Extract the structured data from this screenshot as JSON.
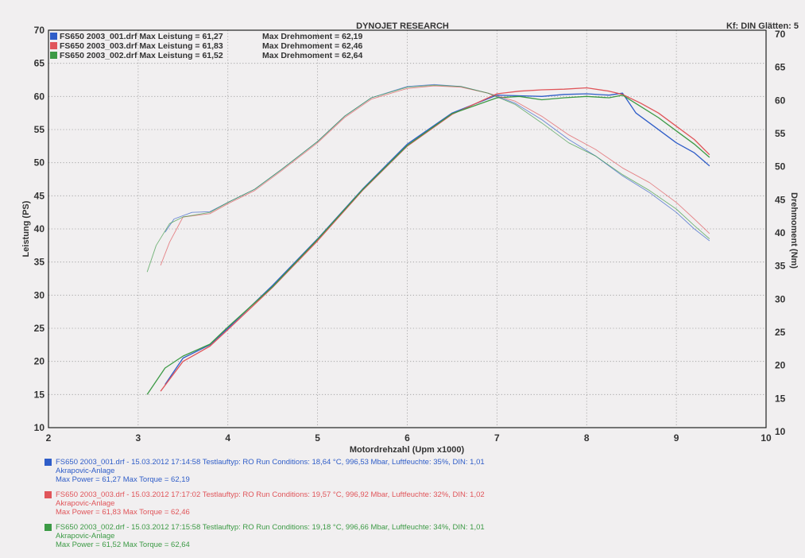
{
  "header": {
    "title": "DYNOJET RESEARCH",
    "right": "Kf: DIN  Glätten: 5"
  },
  "colors": {
    "blue": "#2f5dc8",
    "red": "#e0555a",
    "green": "#3c9a45"
  },
  "legend_top": [
    {
      "file": "FS650 2003_001.drf",
      "power": "Max Leistung = 61,27",
      "torque": "Max Drehmoment = 62,19",
      "color": "#2f5dc8"
    },
    {
      "file": "FS650 2003_003.drf",
      "power": "Max Leistung = 61,83",
      "torque": "Max Drehmoment = 62,46",
      "color": "#e0555a"
    },
    {
      "file": "FS650 2003_002.drf",
      "power": "Max Leistung = 61,52",
      "torque": "Max Drehmoment = 62,64",
      "color": "#3c9a45"
    }
  ],
  "bottom_legend": [
    {
      "line1": "FS650 2003_001.drf - 15.03.2012 17:14:58  Testlauftyp: RO  Run Conditions: 18,64 °C, 996,53 Mbar,  Luftfeuchte: 35%,  DIN: 1,01",
      "line2": "Akrapovic-Anlage",
      "line3": "Max Power = 61,27  Max Torque = 62,19",
      "color": "#2f5dc8"
    },
    {
      "line1": "FS650 2003_003.drf - 15.03.2012 17:17:02  Testlauftyp: RO  Run Conditions: 19,57 °C, 996,92 Mbar,  Luftfeuchte: 32%,  DIN: 1,02",
      "line2": "Akrapovic-Anlage",
      "line3": "Max Power = 61,83  Max Torque = 62,46",
      "color": "#e0555a"
    },
    {
      "line1": "FS650 2003_002.drf - 15.03.2012 17:15:58  Testlauftyp: RO  Run Conditions: 19,18 °C, 996,66 Mbar,  Luftfeuchte: 34%,  DIN: 1,01",
      "line2": "Akrapovic-Anlage",
      "line3": "Max Power = 61,52  Max Torque = 62,64",
      "color": "#3c9a45"
    }
  ],
  "chart_data": {
    "type": "line",
    "xlabel": "Motordrehzahl (Upm x1000)",
    "ylabel_left": "Leistung (PS)",
    "ylabel_right": "Drehmoment (Nm)",
    "xlim": [
      2,
      10
    ],
    "ylim_left": [
      10,
      70
    ],
    "ylim_right": [
      10,
      70
    ],
    "xticks": [
      "2",
      "3",
      "4",
      "5",
      "6",
      "7",
      "8",
      "9",
      "10"
    ],
    "yticks_left": [
      "10",
      "15",
      "20",
      "25",
      "30",
      "35",
      "40",
      "45",
      "50",
      "55",
      "60",
      "65",
      "70"
    ],
    "yticks_right": [
      "10",
      "15",
      "20",
      "25",
      "30",
      "35",
      "40",
      "45",
      "50",
      "55",
      "60",
      "65",
      "70"
    ],
    "grid": true,
    "series": [
      {
        "name": "FS650 2003_001.drf",
        "kind": "power",
        "color": "#2f5dc8",
        "x": [
          3.3,
          3.5,
          3.8,
          4.0,
          4.5,
          5.0,
          5.5,
          6.0,
          6.5,
          7.0,
          7.25,
          7.5,
          7.75,
          8.0,
          8.25,
          8.4,
          8.55,
          8.75,
          9.0,
          9.2,
          9.37
        ],
        "y": [
          16.5,
          20.5,
          22.5,
          25.0,
          31.5,
          38.5,
          46.0,
          52.8,
          57.5,
          60.2,
          60.1,
          60.0,
          60.3,
          60.4,
          60.2,
          60.5,
          57.5,
          55.5,
          53.0,
          51.5,
          49.5
        ]
      },
      {
        "name": "FS650 2003_003.drf",
        "kind": "power",
        "color": "#e0555a",
        "x": [
          3.25,
          3.5,
          3.8,
          4.0,
          4.5,
          5.0,
          5.5,
          6.0,
          6.5,
          7.0,
          7.25,
          7.5,
          7.75,
          8.0,
          8.25,
          8.4,
          8.6,
          8.8,
          9.0,
          9.2,
          9.37
        ],
        "y": [
          15.5,
          20.0,
          22.3,
          24.8,
          31.2,
          38.2,
          45.8,
          52.5,
          57.3,
          60.4,
          60.8,
          61.0,
          61.1,
          61.3,
          60.8,
          60.3,
          59.0,
          57.5,
          55.5,
          53.5,
          51.2
        ]
      },
      {
        "name": "FS650 2003_002.drf",
        "kind": "power",
        "color": "#3c9a45",
        "x": [
          3.1,
          3.3,
          3.5,
          3.8,
          4.0,
          4.5,
          5.0,
          5.5,
          6.0,
          6.5,
          7.0,
          7.25,
          7.5,
          7.75,
          8.0,
          8.25,
          8.4,
          8.6,
          8.8,
          9.0,
          9.2,
          9.37
        ],
        "y": [
          15.0,
          19.0,
          20.8,
          22.6,
          25.2,
          31.3,
          38.4,
          45.9,
          52.6,
          57.4,
          59.8,
          60.0,
          59.5,
          59.8,
          60.0,
          59.8,
          60.2,
          58.5,
          56.8,
          54.8,
          52.8,
          50.8
        ]
      },
      {
        "name": "FS650 2003_001.drf",
        "kind": "torque",
        "color": "#2f5dc8",
        "x": [
          3.3,
          3.4,
          3.6,
          3.8,
          4.0,
          4.3,
          4.6,
          5.0,
          5.3,
          5.6,
          6.0,
          6.3,
          6.6,
          6.9,
          7.2,
          7.5,
          7.8,
          8.1,
          8.4,
          8.7,
          9.0,
          9.2,
          9.37
        ],
        "y": [
          39.5,
          41.5,
          42.5,
          42.6,
          44.0,
          46.0,
          49.0,
          53.2,
          57.0,
          59.8,
          61.5,
          61.8,
          61.5,
          60.5,
          59.0,
          56.5,
          53.5,
          51.0,
          48.0,
          45.5,
          42.5,
          40.0,
          38.2
        ]
      },
      {
        "name": "FS650 2003_003.drf",
        "kind": "torque",
        "color": "#e0555a",
        "x": [
          3.25,
          3.35,
          3.5,
          3.8,
          4.0,
          4.3,
          4.6,
          5.0,
          5.3,
          5.6,
          6.0,
          6.3,
          6.6,
          6.9,
          7.2,
          7.5,
          7.8,
          8.1,
          8.4,
          8.7,
          9.0,
          9.2,
          9.37
        ],
        "y": [
          34.5,
          38.0,
          41.8,
          42.3,
          43.8,
          45.8,
          48.8,
          53.0,
          56.8,
          59.6,
          61.2,
          61.6,
          61.4,
          60.5,
          59.3,
          57.0,
          54.2,
          52.0,
          49.2,
          47.0,
          44.0,
          41.5,
          39.3
        ]
      },
      {
        "name": "FS650 2003_002.drf",
        "kind": "torque",
        "color": "#3c9a45",
        "x": [
          3.1,
          3.2,
          3.35,
          3.5,
          3.8,
          4.0,
          4.3,
          4.6,
          5.0,
          5.3,
          5.6,
          6.0,
          6.3,
          6.6,
          6.9,
          7.2,
          7.5,
          7.8,
          8.1,
          8.4,
          8.7,
          9.0,
          9.2,
          9.37
        ],
        "y": [
          33.5,
          37.5,
          40.8,
          41.8,
          42.5,
          44.0,
          46.0,
          49.0,
          53.2,
          57.0,
          59.8,
          61.4,
          61.7,
          61.5,
          60.5,
          58.8,
          56.0,
          53.0,
          51.0,
          48.2,
          45.8,
          43.0,
          40.5,
          38.5
        ]
      }
    ]
  }
}
